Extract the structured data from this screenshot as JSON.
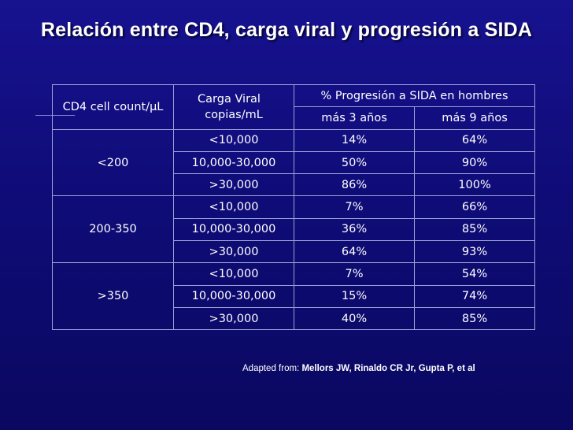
{
  "title": "Relación entre CD4, carga viral y progresión a SIDA",
  "table": {
    "header": {
      "cd4": "CD4 cell count/µL",
      "carga_line1": "Carga Viral",
      "carga_line2": "copias/mL",
      "progresion": "% Progresión a SIDA en hombres",
      "col3": "más 3 años",
      "col9": "más 9 años"
    },
    "groups": [
      {
        "cd4": "<200",
        "rows": [
          {
            "carga": "<10,000",
            "p3": "14%",
            "p9": "64%"
          },
          {
            "carga": "10,000-30,000",
            "p3": "50%",
            "p9": "90%"
          },
          {
            "carga": ">30,000",
            "p3": "86%",
            "p9": "100%"
          }
        ]
      },
      {
        "cd4": "200-350",
        "rows": [
          {
            "carga": "<10,000",
            "p3": "7%",
            "p9": "66%"
          },
          {
            "carga": "10,000-30,000",
            "p3": "36%",
            "p9": "85%"
          },
          {
            "carga": ">30,000",
            "p3": "64%",
            "p9": "93%"
          }
        ]
      },
      {
        "cd4": ">350",
        "rows": [
          {
            "carga": "<10,000",
            "p3": "7%",
            "p9": "54%"
          },
          {
            "carga": "10,000-30,000",
            "p3": "15%",
            "p9": "74%"
          },
          {
            "carga": ">30,000",
            "p3": "40%",
            "p9": "85%"
          }
        ]
      }
    ]
  },
  "footer": {
    "prefix": "Adapted from: ",
    "source": "Mellors JW, Rinaldo CR Jr, Gupta P, et al"
  }
}
